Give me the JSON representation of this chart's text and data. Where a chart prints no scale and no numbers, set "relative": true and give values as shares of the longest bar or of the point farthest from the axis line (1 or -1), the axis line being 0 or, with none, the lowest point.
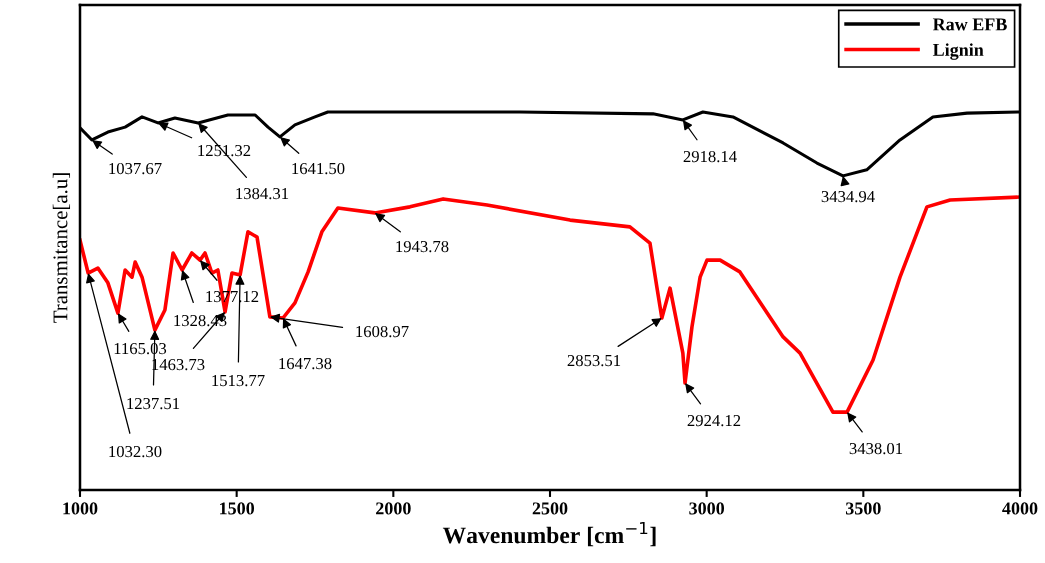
{
  "chart_data": {
    "type": "line",
    "xlabel": "Wavenumber [cm$^{−1}$]",
    "ylabel": "Transmitance[a.u]",
    "relative": true,
    "xlim": [
      1000,
      4000
    ],
    "xticks": [
      1000,
      1500,
      2000,
      2500,
      3000,
      3500,
      4000
    ],
    "grid": false,
    "legend": "top right",
    "tick_labels": "x",
    "series": [
      {
        "name": "Raw EFB",
        "color": "#000000",
        "x": [
          1000,
          1038,
          1089,
          1144,
          1198,
          1249,
          1303,
          1377,
          1472,
          1559,
          1600,
          1638,
          1686,
          1750,
          1791,
          1941,
          2404,
          2829,
          2924,
          2988,
          3084,
          3244,
          3352,
          3435,
          3511,
          3617,
          3722,
          3831,
          4000
        ],
        "values": [
          0.958,
          0.926,
          0.947,
          0.96,
          0.987,
          0.971,
          0.984,
          0.971,
          0.992,
          0.992,
          0.96,
          0.934,
          0.966,
          0.987,
          1.0,
          1.0,
          1.0,
          0.995,
          0.979,
          1.0,
          0.987,
          0.918,
          0.865,
          0.831,
          0.847,
          0.926,
          0.987,
          0.997,
          1.0
        ]
      },
      {
        "name": "Lignin",
        "color": "#ff0000",
        "x": [
          1000,
          1026,
          1057,
          1089,
          1121,
          1144,
          1166,
          1176,
          1198,
          1239,
          1271,
          1297,
          1326,
          1357,
          1383,
          1399,
          1421,
          1440,
          1463,
          1485,
          1511,
          1536,
          1565,
          1606,
          1648,
          1686,
          1728,
          1772,
          1823,
          1941,
          2053,
          2159,
          2299,
          2564,
          2755,
          2819,
          2841,
          2857,
          2883,
          2924,
          2931,
          2953,
          2979,
          3001,
          3043,
          3106,
          3244,
          3298,
          3403,
          3448,
          3531,
          3617,
          3703,
          3777,
          4000
        ],
        "values": [
          0.661,
          0.574,
          0.587,
          0.548,
          0.468,
          0.582,
          0.563,
          0.603,
          0.563,
          0.423,
          0.476,
          0.627,
          0.582,
          0.627,
          0.608,
          0.627,
          0.574,
          0.582,
          0.471,
          0.574,
          0.569,
          0.683,
          0.669,
          0.458,
          0.455,
          0.495,
          0.577,
          0.683,
          0.746,
          0.733,
          0.749,
          0.77,
          0.754,
          0.714,
          0.696,
          0.653,
          0.537,
          0.455,
          0.534,
          0.362,
          0.283,
          0.431,
          0.563,
          0.608,
          0.608,
          0.577,
          0.405,
          0.362,
          0.206,
          0.206,
          0.344,
          0.563,
          0.749,
          0.767,
          0.775
        ]
      }
    ],
    "annotations": [
      {
        "text": "1037.67",
        "x": 1038,
        "y": 0.926
      },
      {
        "text": "1251.32",
        "x": 1249,
        "y": 0.971
      },
      {
        "text": "1384.31",
        "x": 1377,
        "y": 0.971
      },
      {
        "text": "1641.50",
        "x": 1638,
        "y": 0.934
      },
      {
        "text": "2918.14",
        "x": 2924,
        "y": 0.979
      },
      {
        "text": "3434.94",
        "x": 3435,
        "y": 0.831
      },
      {
        "text": "1943.78",
        "x": 1941,
        "y": 0.733
      },
      {
        "text": "1608.97",
        "x": 1606,
        "y": 0.458
      },
      {
        "text": "1165.03",
        "x": 1121,
        "y": 0.468
      },
      {
        "text": "1328.43",
        "x": 1326,
        "y": 0.582
      },
      {
        "text": "1377.12",
        "x": 1383,
        "y": 0.608
      },
      {
        "text": "1463.73",
        "x": 1463,
        "y": 0.471
      },
      {
        "text": "1513.77",
        "x": 1511,
        "y": 0.569
      },
      {
        "text": "1647.38",
        "x": 1648,
        "y": 0.455
      },
      {
        "text": "1237.51",
        "x": 1239,
        "y": 0.423
      },
      {
        "text": "1032.30",
        "x": 1026,
        "y": 0.574
      },
      {
        "text": "2853.51",
        "x": 2857,
        "y": 0.455
      },
      {
        "text": "2924.12",
        "x": 2931,
        "y": 0.283
      },
      {
        "text": "3438.01",
        "x": 3448,
        "y": 0.206
      }
    ]
  }
}
